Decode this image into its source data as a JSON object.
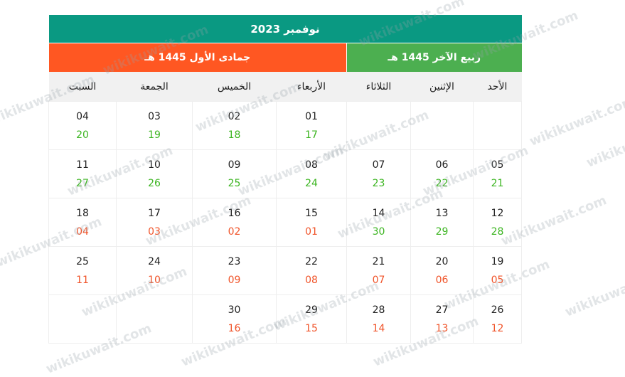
{
  "title": "نوفمبر 2023",
  "hijri_months": [
    {
      "label": "ربيع الآخر 1445 هـ",
      "color": "#4caf50"
    },
    {
      "label": "جمادى الأول 1445 هـ",
      "color": "#ff5722"
    }
  ],
  "colors": {
    "title": "#0a9982",
    "hijri_first": "#3cb521",
    "hijri_second": "#f0542a"
  },
  "weekdays": [
    "الأحد",
    "الإثنين",
    "الثلاثاء",
    "الأربعاء",
    "الخميس",
    "الجمعة",
    "السبت"
  ],
  "weeks": [
    [
      null,
      null,
      null,
      {
        "g": "01",
        "h": "17",
        "m": 1
      },
      {
        "g": "02",
        "h": "18",
        "m": 1
      },
      {
        "g": "03",
        "h": "19",
        "m": 1
      },
      {
        "g": "04",
        "h": "20",
        "m": 1
      }
    ],
    [
      {
        "g": "05",
        "h": "21",
        "m": 1
      },
      {
        "g": "06",
        "h": "22",
        "m": 1
      },
      {
        "g": "07",
        "h": "23",
        "m": 1
      },
      {
        "g": "08",
        "h": "24",
        "m": 1
      },
      {
        "g": "09",
        "h": "25",
        "m": 1
      },
      {
        "g": "10",
        "h": "26",
        "m": 1
      },
      {
        "g": "11",
        "h": "27",
        "m": 1
      }
    ],
    [
      {
        "g": "12",
        "h": "28",
        "m": 1
      },
      {
        "g": "13",
        "h": "29",
        "m": 1
      },
      {
        "g": "14",
        "h": "30",
        "m": 1
      },
      {
        "g": "15",
        "h": "01",
        "m": 2
      },
      {
        "g": "16",
        "h": "02",
        "m": 2
      },
      {
        "g": "17",
        "h": "03",
        "m": 2
      },
      {
        "g": "18",
        "h": "04",
        "m": 2
      }
    ],
    [
      {
        "g": "19",
        "h": "05",
        "m": 2
      },
      {
        "g": "20",
        "h": "06",
        "m": 2
      },
      {
        "g": "21",
        "h": "07",
        "m": 2
      },
      {
        "g": "22",
        "h": "08",
        "m": 2
      },
      {
        "g": "23",
        "h": "09",
        "m": 2
      },
      {
        "g": "24",
        "h": "10",
        "m": 2
      },
      {
        "g": "25",
        "h": "11",
        "m": 2
      }
    ],
    [
      {
        "g": "26",
        "h": "12",
        "m": 2
      },
      {
        "g": "27",
        "h": "13",
        "m": 2
      },
      {
        "g": "28",
        "h": "14",
        "m": 2
      },
      {
        "g": "29",
        "h": "15",
        "m": 2
      },
      {
        "g": "30",
        "h": "16",
        "m": 2
      },
      null,
      null
    ]
  ],
  "watermark": "wikikuwait.com"
}
